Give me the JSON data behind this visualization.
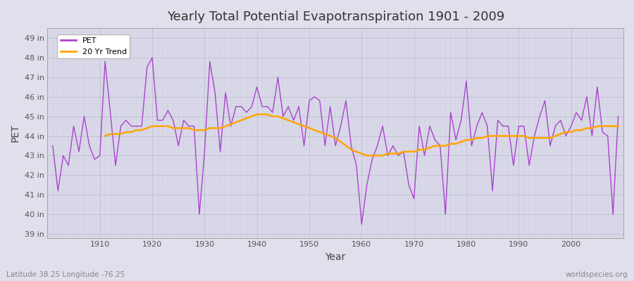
{
  "title": "Yearly Total Potential Evapotranspiration 1901 - 2009",
  "xlabel": "Year",
  "ylabel": "PET",
  "bottom_left": "Latitude 38.25 Longitude -76.25",
  "bottom_right": "worldspecies.org",
  "pet_color": "#AA44CC",
  "trend_color": "#FFA500",
  "bg_color": "#E0E0EC",
  "plot_bg": "#D8D8E8",
  "ylim": [
    38.8,
    49.5
  ],
  "yticks": [
    39,
    40,
    41,
    42,
    43,
    44,
    45,
    46,
    47,
    48,
    49
  ],
  "xlim": [
    1900,
    2010
  ],
  "years": [
    1901,
    1902,
    1903,
    1904,
    1905,
    1906,
    1907,
    1908,
    1909,
    1910,
    1911,
    1912,
    1913,
    1914,
    1915,
    1916,
    1917,
    1918,
    1919,
    1920,
    1921,
    1922,
    1923,
    1924,
    1925,
    1926,
    1927,
    1928,
    1929,
    1930,
    1931,
    1932,
    1933,
    1934,
    1935,
    1936,
    1937,
    1938,
    1939,
    1940,
    1941,
    1942,
    1943,
    1944,
    1945,
    1946,
    1947,
    1948,
    1949,
    1950,
    1951,
    1952,
    1953,
    1954,
    1955,
    1956,
    1957,
    1958,
    1959,
    1960,
    1961,
    1962,
    1963,
    1964,
    1965,
    1966,
    1967,
    1968,
    1969,
    1970,
    1971,
    1972,
    1973,
    1974,
    1975,
    1976,
    1977,
    1978,
    1979,
    1980,
    1981,
    1982,
    1983,
    1984,
    1985,
    1986,
    1987,
    1988,
    1989,
    1990,
    1991,
    1992,
    1993,
    1994,
    1995,
    1996,
    1997,
    1998,
    1999,
    2000,
    2001,
    2002,
    2003,
    2004,
    2005,
    2006,
    2007,
    2008,
    2009
  ],
  "pet": [
    43.5,
    41.2,
    43.0,
    42.5,
    44.5,
    43.2,
    45.0,
    43.5,
    42.8,
    43.0,
    47.8,
    45.2,
    42.5,
    44.5,
    44.8,
    44.5,
    44.5,
    44.5,
    47.5,
    48.0,
    44.8,
    44.8,
    45.3,
    44.8,
    43.5,
    44.8,
    44.5,
    44.5,
    40.0,
    43.2,
    47.8,
    46.2,
    43.2,
    46.2,
    44.5,
    45.5,
    45.5,
    45.2,
    45.5,
    46.5,
    45.5,
    45.5,
    45.2,
    47.0,
    45.0,
    45.5,
    44.8,
    45.5,
    43.5,
    45.8,
    46.0,
    45.8,
    43.5,
    45.5,
    43.5,
    44.5,
    45.8,
    43.5,
    42.5,
    39.5,
    41.5,
    42.8,
    43.5,
    44.5,
    43.0,
    43.5,
    43.0,
    43.2,
    41.5,
    40.8,
    44.5,
    43.0,
    44.5,
    43.8,
    43.5,
    40.0,
    45.2,
    43.8,
    44.8,
    46.8,
    43.5,
    44.5,
    45.2,
    44.5,
    41.2,
    44.8,
    44.5,
    44.5,
    42.5,
    44.5,
    44.5,
    42.5,
    44.0,
    45.0,
    45.8,
    43.5,
    44.5,
    44.8,
    44.0,
    44.5,
    45.2,
    44.8,
    46.0,
    44.0,
    46.5,
    44.2,
    44.0,
    40.0,
    45.0
  ],
  "trend": [
    null,
    null,
    null,
    null,
    null,
    null,
    null,
    null,
    null,
    null,
    44.0,
    44.1,
    44.1,
    44.1,
    44.2,
    44.2,
    44.3,
    44.3,
    44.4,
    44.5,
    44.5,
    44.5,
    44.5,
    44.4,
    44.4,
    44.4,
    44.4,
    44.3,
    44.3,
    44.3,
    44.4,
    44.4,
    44.4,
    44.5,
    44.6,
    44.7,
    44.8,
    44.9,
    45.0,
    45.1,
    45.1,
    45.1,
    45.0,
    45.0,
    44.9,
    44.8,
    44.7,
    44.6,
    44.5,
    44.4,
    44.3,
    44.2,
    44.1,
    44.0,
    43.9,
    43.7,
    43.5,
    43.3,
    43.2,
    43.1,
    43.0,
    43.0,
    43.0,
    43.0,
    43.1,
    43.1,
    43.1,
    43.2,
    43.2,
    43.2,
    43.3,
    43.3,
    43.4,
    43.5,
    43.5,
    43.5,
    43.6,
    43.6,
    43.7,
    43.8,
    43.8,
    43.9,
    43.9,
    44.0,
    44.0,
    44.0,
    44.0,
    44.0,
    44.0,
    44.0,
    44.0,
    43.9,
    43.9,
    43.9,
    43.9,
    43.9,
    44.0,
    44.1,
    44.2,
    44.2,
    44.3,
    44.3,
    44.4,
    44.4,
    44.5,
    44.5,
    44.5,
    44.5,
    44.5
  ]
}
